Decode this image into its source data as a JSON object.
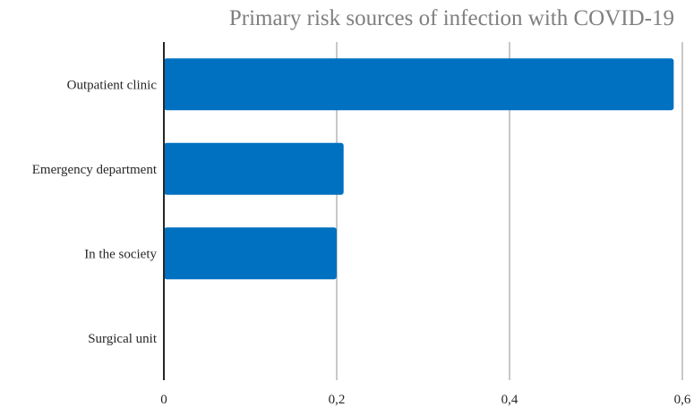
{
  "chart_data": {
    "type": "bar",
    "orientation": "horizontal",
    "title": "Primary risk sources of infection with COVID-19",
    "xlabel": "",
    "ylabel": "",
    "categories": [
      "Outpatient clinic",
      "Emergency department",
      "In the society",
      "Surgical unit"
    ],
    "values": [
      0.59,
      0.208,
      0.2,
      0
    ],
    "xlim": [
      0,
      0.6
    ],
    "x_ticks": [
      0,
      0.2,
      0.4,
      0.6
    ],
    "x_tick_labels": [
      "0",
      "0,2",
      "0,4",
      "0,6"
    ],
    "grid": true,
    "legend": "none",
    "bar_color": "#0070c0"
  }
}
